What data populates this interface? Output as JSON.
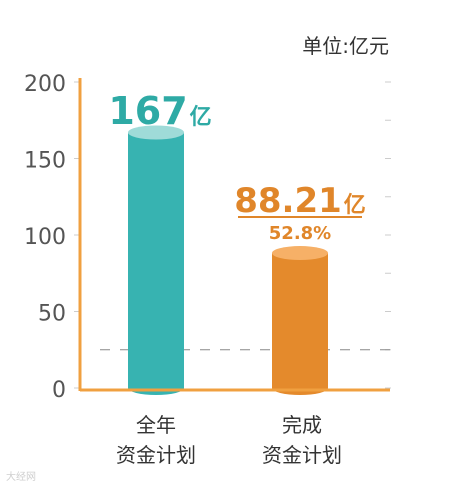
{
  "unit_label": "单位:亿元",
  "watermark": "大经网",
  "colors": {
    "teal": "#37b3b1",
    "teal_top": "#9fdbd8",
    "teal_text": "#2eaaa5",
    "orange": "#e48a2c",
    "orange_top": "#f6b067",
    "orange_text": "#e0862a",
    "axis": "#f0a040",
    "tick_text": "#555555",
    "dash": "#888888"
  },
  "chart_data": {
    "type": "bar",
    "title": "",
    "xlabel": "",
    "ylabel": "",
    "ylim": [
      0,
      200
    ],
    "yticks": [
      "0",
      "50",
      "100",
      "150",
      "200"
    ],
    "reference_line": 25,
    "categories": [
      "全年\n资金计划",
      "完成\n资金计划"
    ],
    "values": [
      167,
      88.21
    ],
    "value_labels": [
      {
        "number": "167",
        "unit": "亿",
        "sub": ""
      },
      {
        "number": "88.21",
        "unit": "亿",
        "sub": "52.8%"
      }
    ]
  }
}
